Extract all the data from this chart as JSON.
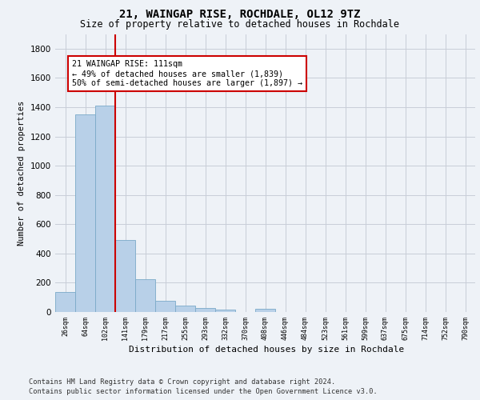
{
  "title1": "21, WAINGAP RISE, ROCHDALE, OL12 9TZ",
  "title2": "Size of property relative to detached houses in Rochdale",
  "xlabel": "Distribution of detached houses by size in Rochdale",
  "ylabel": "Number of detached properties",
  "bar_labels": [
    "26sqm",
    "64sqm",
    "102sqm",
    "141sqm",
    "179sqm",
    "217sqm",
    "255sqm",
    "293sqm",
    "332sqm",
    "370sqm",
    "408sqm",
    "446sqm",
    "484sqm",
    "523sqm",
    "561sqm",
    "599sqm",
    "637sqm",
    "675sqm",
    "714sqm",
    "752sqm",
    "790sqm"
  ],
  "bar_values": [
    135,
    1350,
    1410,
    490,
    225,
    75,
    45,
    28,
    15,
    0,
    20,
    0,
    0,
    0,
    0,
    0,
    0,
    0,
    0,
    0,
    0
  ],
  "bar_color": "#b8d0e8",
  "bar_edge_color": "#7aaac8",
  "vline_color": "#cc0000",
  "annotation_text": "21 WAINGAP RISE: 111sqm\n← 49% of detached houses are smaller (1,839)\n50% of semi-detached houses are larger (1,897) →",
  "annotation_box_color": "#ffffff",
  "annotation_box_edge_color": "#cc0000",
  "ylim": [
    0,
    1900
  ],
  "yticks": [
    0,
    200,
    400,
    600,
    800,
    1000,
    1200,
    1400,
    1600,
    1800
  ],
  "footer1": "Contains HM Land Registry data © Crown copyright and database right 2024.",
  "footer2": "Contains public sector information licensed under the Open Government Licence v3.0.",
  "bg_color": "#eef2f7",
  "plot_bg_color": "#eef2f7",
  "grid_color": "#c8cdd8"
}
